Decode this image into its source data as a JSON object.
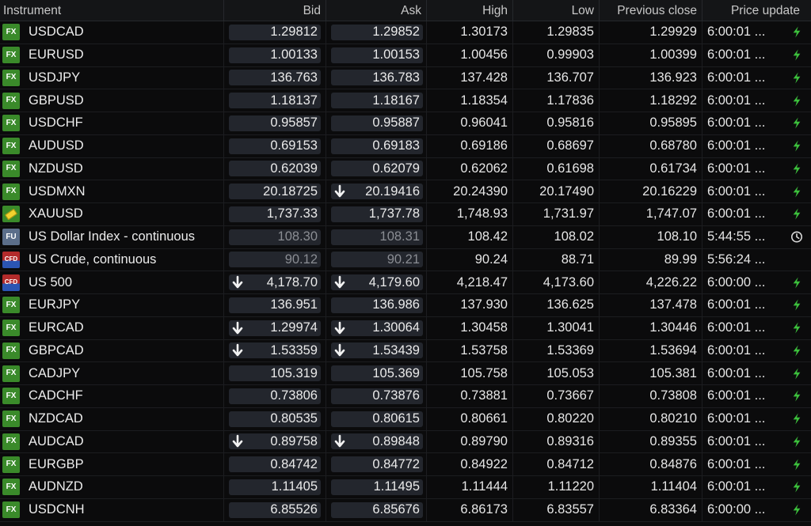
{
  "columns": {
    "instrument": "Instrument",
    "bid": "Bid",
    "ask": "Ask",
    "high": "High",
    "low": "Low",
    "prev_close": "Previous close",
    "update": "Price update"
  },
  "colors": {
    "fx_badge": "#3a8a2a",
    "fu_badge": "#5b6e8a",
    "live_icon": "#3cc03c",
    "quote_bg": "#23262d"
  },
  "rows": [
    {
      "badge": "FX",
      "type": "fx",
      "name": "USDCAD",
      "bid": "1.29812",
      "ask": "1.29852",
      "high": "1.30173",
      "low": "1.29835",
      "prev": "1.29929",
      "time": "6:00:01 ...",
      "status": "lightning-icon",
      "bid_down": false,
      "ask_down": false,
      "stale": false
    },
    {
      "badge": "FX",
      "type": "fx",
      "name": "EURUSD",
      "bid": "1.00133",
      "ask": "1.00153",
      "high": "1.00456",
      "low": "0.99903",
      "prev": "1.00399",
      "time": "6:00:01 ...",
      "status": "lightning-icon",
      "bid_down": false,
      "ask_down": false,
      "stale": false
    },
    {
      "badge": "FX",
      "type": "fx",
      "name": "USDJPY",
      "bid": "136.763",
      "ask": "136.783",
      "high": "137.428",
      "low": "136.707",
      "prev": "136.923",
      "time": "6:00:01 ...",
      "status": "lightning-icon",
      "bid_down": false,
      "ask_down": false,
      "stale": false
    },
    {
      "badge": "FX",
      "type": "fx",
      "name": "GBPUSD",
      "bid": "1.18137",
      "ask": "1.18167",
      "high": "1.18354",
      "low": "1.17836",
      "prev": "1.18292",
      "time": "6:00:01 ...",
      "status": "lightning-icon",
      "bid_down": false,
      "ask_down": false,
      "stale": false
    },
    {
      "badge": "FX",
      "type": "fx",
      "name": "USDCHF",
      "bid": "0.95857",
      "ask": "0.95887",
      "high": "0.96041",
      "low": "0.95816",
      "prev": "0.95895",
      "time": "6:00:01 ...",
      "status": "lightning-icon",
      "bid_down": false,
      "ask_down": false,
      "stale": false
    },
    {
      "badge": "FX",
      "type": "fx",
      "name": "AUDUSD",
      "bid": "0.69153",
      "ask": "0.69183",
      "high": "0.69186",
      "low": "0.68697",
      "prev": "0.68780",
      "time": "6:00:01 ...",
      "status": "lightning-icon",
      "bid_down": false,
      "ask_down": false,
      "stale": false
    },
    {
      "badge": "FX",
      "type": "fx",
      "name": "NZDUSD",
      "bid": "0.62039",
      "ask": "0.62079",
      "high": "0.62062",
      "low": "0.61698",
      "prev": "0.61734",
      "time": "6:00:01 ...",
      "status": "lightning-icon",
      "bid_down": false,
      "ask_down": false,
      "stale": false
    },
    {
      "badge": "FX",
      "type": "fx",
      "name": "USDMXN",
      "bid": "20.18725",
      "ask": "20.19416",
      "high": "20.24390",
      "low": "20.17490",
      "prev": "20.16229",
      "time": "6:00:01 ...",
      "status": "lightning-icon",
      "bid_down": false,
      "ask_down": true,
      "stale": false
    },
    {
      "badge": "",
      "type": "gold",
      "name": "XAUUSD",
      "bid": "1,737.33",
      "ask": "1,737.78",
      "high": "1,748.93",
      "low": "1,731.97",
      "prev": "1,747.07",
      "time": "6:00:01 ...",
      "status": "lightning-icon",
      "bid_down": false,
      "ask_down": false,
      "stale": false
    },
    {
      "badge": "FU",
      "type": "fu",
      "name": "US Dollar Index - continuous",
      "bid": "108.30",
      "ask": "108.31",
      "high": "108.42",
      "low": "108.02",
      "prev": "108.10",
      "time": "5:44:55 ...",
      "status": "clock-icon",
      "bid_down": false,
      "ask_down": false,
      "stale": true
    },
    {
      "badge": "CFD",
      "type": "cfd",
      "name": "US Crude, continuous",
      "bid": "90.12",
      "ask": "90.21",
      "high": "90.24",
      "low": "88.71",
      "prev": "89.99",
      "time": "5:56:24 ...",
      "status": "none",
      "bid_down": false,
      "ask_down": false,
      "stale": true
    },
    {
      "badge": "CFD",
      "type": "cfd",
      "name": "US 500",
      "bid": "4,178.70",
      "ask": "4,179.60",
      "high": "4,218.47",
      "low": "4,173.60",
      "prev": "4,226.22",
      "time": "6:00:00 ...",
      "status": "lightning-icon",
      "bid_down": true,
      "ask_down": true,
      "stale": false
    },
    {
      "badge": "FX",
      "type": "fx",
      "name": "EURJPY",
      "bid": "136.951",
      "ask": "136.986",
      "high": "137.930",
      "low": "136.625",
      "prev": "137.478",
      "time": "6:00:01 ...",
      "status": "lightning-icon",
      "bid_down": false,
      "ask_down": false,
      "stale": false
    },
    {
      "badge": "FX",
      "type": "fx",
      "name": "EURCAD",
      "bid": "1.29974",
      "ask": "1.30064",
      "high": "1.30458",
      "low": "1.30041",
      "prev": "1.30446",
      "time": "6:00:01 ...",
      "status": "lightning-icon",
      "bid_down": true,
      "ask_down": true,
      "stale": false
    },
    {
      "badge": "FX",
      "type": "fx",
      "name": "GBPCAD",
      "bid": "1.53359",
      "ask": "1.53439",
      "high": "1.53758",
      "low": "1.53369",
      "prev": "1.53694",
      "time": "6:00:01 ...",
      "status": "lightning-icon",
      "bid_down": true,
      "ask_down": true,
      "stale": false
    },
    {
      "badge": "FX",
      "type": "fx",
      "name": "CADJPY",
      "bid": "105.319",
      "ask": "105.369",
      "high": "105.758",
      "low": "105.053",
      "prev": "105.381",
      "time": "6:00:01 ...",
      "status": "lightning-icon",
      "bid_down": false,
      "ask_down": false,
      "stale": false
    },
    {
      "badge": "FX",
      "type": "fx",
      "name": "CADCHF",
      "bid": "0.73806",
      "ask": "0.73876",
      "high": "0.73881",
      "low": "0.73667",
      "prev": "0.73808",
      "time": "6:00:01 ...",
      "status": "lightning-icon",
      "bid_down": false,
      "ask_down": false,
      "stale": false
    },
    {
      "badge": "FX",
      "type": "fx",
      "name": "NZDCAD",
      "bid": "0.80535",
      "ask": "0.80615",
      "high": "0.80661",
      "low": "0.80220",
      "prev": "0.80210",
      "time": "6:00:01 ...",
      "status": "lightning-icon",
      "bid_down": false,
      "ask_down": false,
      "stale": false
    },
    {
      "badge": "FX",
      "type": "fx",
      "name": "AUDCAD",
      "bid": "0.89758",
      "ask": "0.89848",
      "high": "0.89790",
      "low": "0.89316",
      "prev": "0.89355",
      "time": "6:00:01 ...",
      "status": "lightning-icon",
      "bid_down": true,
      "ask_down": true,
      "stale": false
    },
    {
      "badge": "FX",
      "type": "fx",
      "name": "EURGBP",
      "bid": "0.84742",
      "ask": "0.84772",
      "high": "0.84922",
      "low": "0.84712",
      "prev": "0.84876",
      "time": "6:00:01 ...",
      "status": "lightning-icon",
      "bid_down": false,
      "ask_down": false,
      "stale": false
    },
    {
      "badge": "FX",
      "type": "fx",
      "name": "AUDNZD",
      "bid": "1.11405",
      "ask": "1.11495",
      "high": "1.11444",
      "low": "1.11220",
      "prev": "1.11404",
      "time": "6:00:01 ...",
      "status": "lightning-icon",
      "bid_down": false,
      "ask_down": false,
      "stale": false
    },
    {
      "badge": "FX",
      "type": "fx",
      "name": "USDCNH",
      "bid": "6.85526",
      "ask": "6.85676",
      "high": "6.86173",
      "low": "6.83557",
      "prev": "6.83364",
      "time": "6:00:00 ...",
      "status": "lightning-icon",
      "bid_down": false,
      "ask_down": false,
      "stale": false
    }
  ]
}
